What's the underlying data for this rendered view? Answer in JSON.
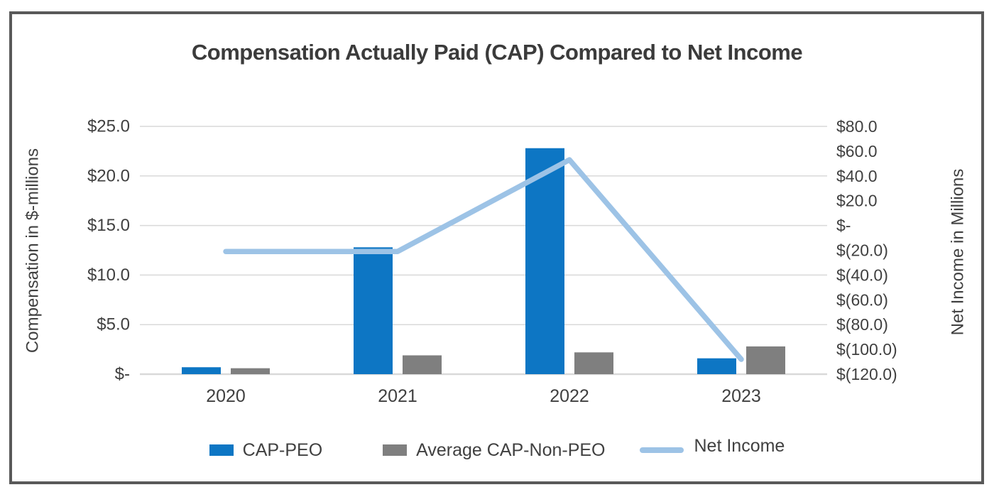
{
  "title": "Compensation Actually Paid (CAP) Compared to Net Income",
  "colors": {
    "cap_peo": "#0d76c4",
    "avg_cap_non_peo": "#7f7f7f",
    "net_income": "#9dc3e6",
    "gridline": "#d9d9d9",
    "axis_text": "#404040",
    "panel_border": "#595959"
  },
  "chart_data": {
    "type": "combo",
    "title": "Compensation Actually Paid (CAP) Compared to Net Income",
    "categories": [
      "2020",
      "2021",
      "2022",
      "2023"
    ],
    "series": [
      {
        "name": "CAP-PEO",
        "type": "bar",
        "axis": "left",
        "color": "#0d76c4",
        "values": [
          0.7,
          12.8,
          22.8,
          1.6
        ]
      },
      {
        "name": "Average CAP-Non-PEO",
        "type": "bar",
        "axis": "left",
        "color": "#7f7f7f",
        "values": [
          0.6,
          1.9,
          2.2,
          2.8
        ]
      },
      {
        "name": "Net Income",
        "type": "line",
        "axis": "right",
        "color": "#9dc3e6",
        "values": [
          -21,
          -21,
          53,
          -108
        ]
      }
    ],
    "left_axis": {
      "title": "Compensation in $-millions",
      "range": [
        0,
        25
      ],
      "tick_labels": [
        "$25.0",
        "$20.0",
        "$15.0",
        "$10.0",
        "$5.0",
        "$-"
      ],
      "tick_values": [
        25,
        20,
        15,
        10,
        5,
        0
      ]
    },
    "right_axis": {
      "title": "Net Income in Millions",
      "range": [
        -120,
        80
      ],
      "tick_labels": [
        "$80.0",
        "$60.0",
        "$40.0",
        "$20.0",
        "$-",
        "$(20.0)",
        "$(40.0)",
        "$(60.0)",
        "$(80.0)",
        "$(100.0)",
        "$(120.0)"
      ],
      "tick_values": [
        80,
        60,
        40,
        20,
        0,
        -20,
        -40,
        -60,
        -80,
        -100,
        -120
      ]
    },
    "grid": true,
    "legend_position": "bottom"
  }
}
